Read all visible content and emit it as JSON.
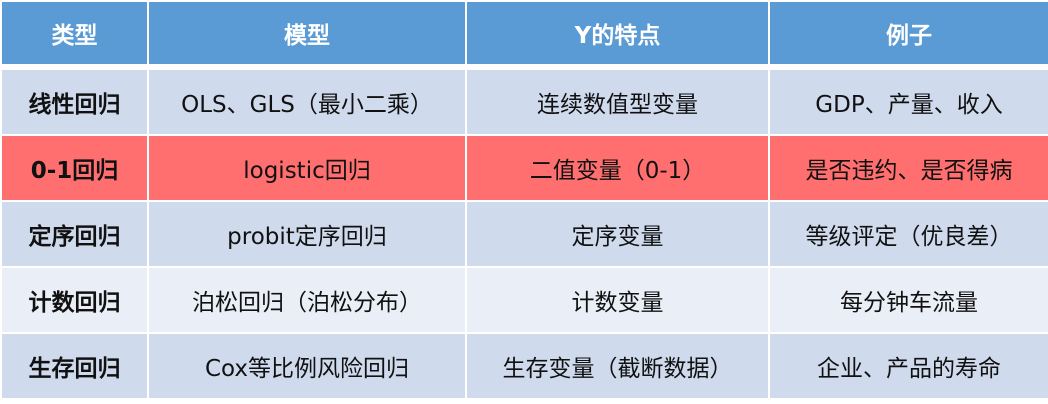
{
  "headers": [
    "类型",
    "模型",
    "Y的特点",
    "例子"
  ],
  "rows": [
    {
      "type": "线性回归",
      "model": "OLS、GLS（最小二乘）",
      "y": "连续数值型变量",
      "example": "GDP、产量、收入"
    },
    {
      "type": "0-1回归",
      "model": "logistic回归",
      "y": "二值变量（0-1）",
      "example": "是否违约、是否得病"
    },
    {
      "type": "定序回归",
      "model": "probit定序回归",
      "y": "定序变量",
      "example": "等级评定（优良差）"
    },
    {
      "type": "计数回归",
      "model": "泊松回归（泊松分布）",
      "y": "计数变量",
      "example": "每分钟车流量"
    },
    {
      "type": "生存回归",
      "model": "Cox等比例风险回归",
      "y": "生存变量（截断数据）",
      "example": "企业、产品的寿命"
    }
  ],
  "colors": {
    "header": "#5B9BD5",
    "row": "#CFDAED",
    "row_alt": "#E9EEF7",
    "highlight": "#FF6F6F"
  }
}
